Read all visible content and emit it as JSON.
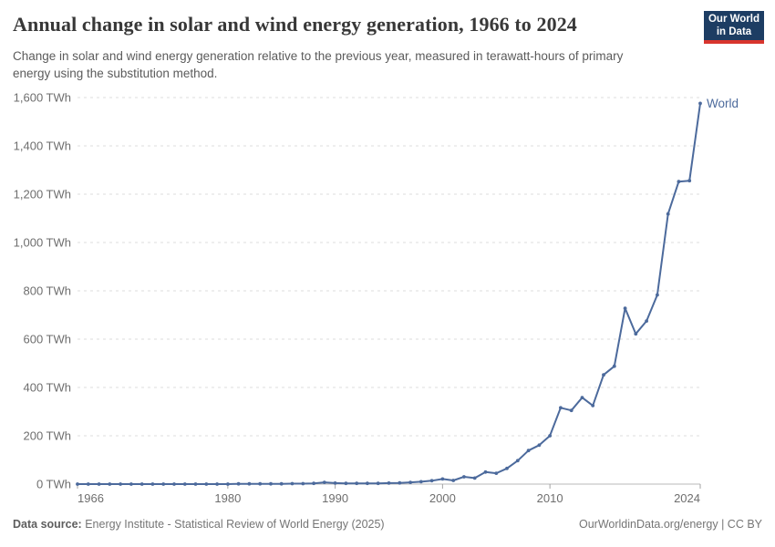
{
  "header": {
    "title": "Annual change in solar and wind energy generation, 1966 to 2024",
    "subtitle": "Change in solar and wind energy generation relative to the previous year, measured in terawatt-hours of primary energy using the substitution method.",
    "logo_line1": "Our World",
    "logo_line2": "in Data"
  },
  "chart_data": {
    "type": "line",
    "title": "Annual change in solar and wind energy generation, 1966 to 2024",
    "xlabel": "",
    "ylabel": "",
    "xlim": [
      1966,
      2024
    ],
    "ylim": [
      0,
      1600
    ],
    "grid": "horizontal-dashed",
    "legend_position": "end-of-line-label",
    "x_ticks": [
      1966,
      1980,
      1990,
      2000,
      2010,
      2024
    ],
    "y_ticks": [
      0,
      200,
      400,
      600,
      800,
      1000,
      1200,
      1400,
      1600
    ],
    "y_tick_labels": [
      "0 TWh",
      "200 TWh",
      "400 TWh",
      "600 TWh",
      "800 TWh",
      "1,000 TWh",
      "1,200 TWh",
      "1,400 TWh",
      "1,600 TWh"
    ],
    "series": [
      {
        "name": "World",
        "color": "#4c6a9c",
        "x": [
          1966,
          1967,
          1968,
          1969,
          1970,
          1971,
          1972,
          1973,
          1974,
          1975,
          1976,
          1977,
          1978,
          1979,
          1980,
          1981,
          1982,
          1983,
          1984,
          1985,
          1986,
          1987,
          1988,
          1989,
          1990,
          1991,
          1992,
          1993,
          1994,
          1995,
          1996,
          1997,
          1998,
          1999,
          2000,
          2001,
          2002,
          2003,
          2004,
          2005,
          2006,
          2007,
          2008,
          2009,
          2010,
          2011,
          2012,
          2013,
          2014,
          2015,
          2016,
          2017,
          2018,
          2019,
          2020,
          2021,
          2022,
          2023,
          2024
        ],
        "values": [
          0,
          0,
          0,
          0,
          0,
          0,
          0,
          0,
          0,
          0,
          0,
          0,
          0,
          0,
          0,
          1,
          1,
          1,
          1,
          1,
          2,
          2,
          3,
          7,
          4,
          3,
          3,
          3,
          3,
          4,
          5,
          7,
          10,
          14,
          21,
          15,
          30,
          25,
          50,
          45,
          65,
          97,
          139,
          161,
          200,
          316,
          305,
          358,
          325,
          452,
          488,
          728,
          622,
          675,
          783,
          1118,
          1252,
          1256,
          1576
        ]
      }
    ]
  },
  "footer": {
    "source_label": "Data source:",
    "source_text": " Energy Institute - Statistical Review of World Energy (2025)",
    "right_text": "OurWorldinData.org/energy | CC BY"
  },
  "colors": {
    "line": "#4c6a9c",
    "grid": "#dedede",
    "axis": "#b8b8b8",
    "tick": "#a3a3a3",
    "axis_text": "#6e6e6e",
    "logo_bg": "#1d3d63",
    "logo_stripe": "#d8352e"
  }
}
